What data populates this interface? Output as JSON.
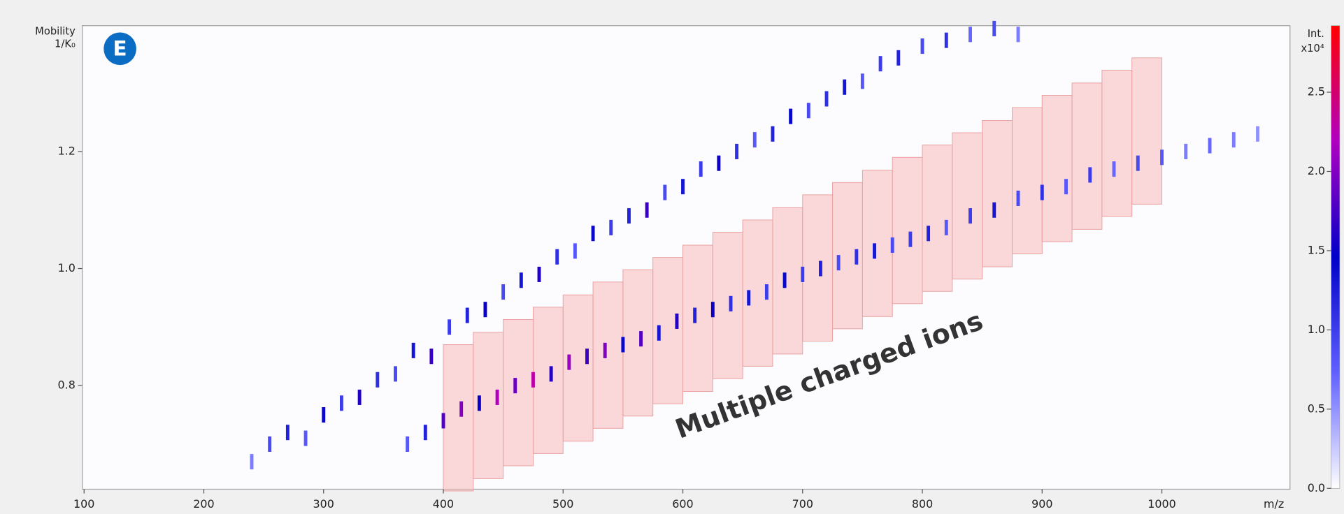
{
  "chart_data": {
    "type": "heatmap",
    "panel_label": "E",
    "y_label": "Mobility",
    "y_unit": "1/K₀",
    "x_label": "m/z",
    "colorbar_label": "Int.",
    "colorbar_unit": "x10⁴",
    "annotation": "Multiple charged ions",
    "xlim": [
      98.5,
      1107
    ],
    "xticks": [
      100,
      200,
      300,
      400,
      500,
      600,
      700,
      800,
      900,
      1000
    ],
    "ylim": [
      0.623,
      1.415
    ],
    "yticks": [
      0.8,
      {
        "value": 1.0,
        "label": "1.0"
      },
      1.2
    ],
    "clim": [
      0,
      2.92
    ],
    "cticks": [
      {
        "value": 0,
        "label": "0.0"
      },
      0.5,
      {
        "value": 1.0,
        "label": "1.0"
      },
      1.5,
      {
        "value": 2.0,
        "label": "2.0"
      },
      2.5
    ],
    "colormap": [
      "#ffffff",
      "#6060ff",
      "#0000c8",
      "#b000c0",
      "#ff0000"
    ],
    "window_color": "#f7b9b9",
    "windows": {
      "mz_start": [
        400,
        425,
        450,
        475,
        500,
        525,
        550,
        575,
        600,
        625,
        650,
        675,
        700,
        725,
        750,
        775,
        800,
        825,
        850,
        875,
        900,
        925,
        950,
        975
      ],
      "mz_end": [
        425,
        450,
        475,
        500,
        525,
        550,
        575,
        600,
        625,
        650,
        675,
        700,
        725,
        750,
        775,
        800,
        825,
        850,
        875,
        900,
        925,
        950,
        975,
        1000
      ],
      "mobility_low": [
        0.62,
        0.641,
        0.663,
        0.684,
        0.705,
        0.727,
        0.748,
        0.769,
        0.79,
        0.812,
        0.833,
        0.854,
        0.876,
        0.897,
        0.918,
        0.94,
        0.961,
        0.982,
        1.003,
        1.025,
        1.046,
        1.067,
        1.089,
        1.11
      ],
      "mobility_high": [
        0.87,
        0.891,
        0.913,
        0.934,
        0.955,
        0.977,
        0.998,
        1.019,
        1.04,
        1.062,
        1.083,
        1.104,
        1.126,
        1.147,
        1.168,
        1.19,
        1.211,
        1.232,
        1.253,
        1.275,
        1.296,
        1.317,
        1.339,
        1.36
      ]
    },
    "ions": {
      "mz": [
        240,
        255,
        270,
        285,
        300,
        315,
        330,
        345,
        360,
        375,
        390,
        405,
        420,
        435,
        450,
        465,
        480,
        495,
        510,
        525,
        540,
        555,
        570,
        585,
        600,
        615,
        630,
        645,
        660,
        675,
        690,
        705,
        720,
        735,
        750,
        765,
        780,
        800,
        820,
        840,
        860,
        880,
        370,
        385,
        400,
        415,
        430,
        445,
        460,
        475,
        490,
        505,
        520,
        535,
        550,
        565,
        580,
        595,
        610,
        625,
        640,
        655,
        670,
        685,
        700,
        715,
        730,
        745,
        760,
        775,
        790,
        805,
        820,
        840,
        860,
        880,
        900,
        920,
        940,
        960,
        980,
        1000,
        1020,
        1040,
        1060,
        1080
      ],
      "mobility": [
        0.67,
        0.7,
        0.72,
        0.71,
        0.75,
        0.77,
        0.78,
        0.81,
        0.82,
        0.86,
        0.85,
        0.9,
        0.92,
        0.93,
        0.96,
        0.98,
        0.99,
        1.02,
        1.03,
        1.06,
        1.07,
        1.09,
        1.1,
        1.13,
        1.14,
        1.17,
        1.18,
        1.2,
        1.22,
        1.23,
        1.26,
        1.27,
        1.29,
        1.31,
        1.32,
        1.35,
        1.36,
        1.38,
        1.39,
        1.4,
        1.41,
        1.4,
        0.7,
        0.72,
        0.74,
        0.76,
        0.77,
        0.78,
        0.8,
        0.81,
        0.82,
        0.84,
        0.85,
        0.86,
        0.87,
        0.88,
        0.89,
        0.91,
        0.92,
        0.93,
        0.94,
        0.95,
        0.96,
        0.98,
        0.99,
        1.0,
        1.01,
        1.02,
        1.03,
        1.04,
        1.05,
        1.06,
        1.07,
        1.09,
        1.1,
        1.12,
        1.13,
        1.14,
        1.16,
        1.17,
        1.18,
        1.19,
        1.2,
        1.21,
        1.22,
        1.23
      ],
      "intensity": [
        0.6,
        0.9,
        1.2,
        0.8,
        1.4,
        1.0,
        1.6,
        1.1,
        0.9,
        1.3,
        1.7,
        1.0,
        1.2,
        1.5,
        0.9,
        1.3,
        1.6,
        1.1,
        0.8,
        1.4,
        1.0,
        1.2,
        1.7,
        0.9,
        1.3,
        1.0,
        1.5,
        1.1,
        0.8,
        1.2,
        1.4,
        0.9,
        1.1,
        1.3,
        0.8,
        1.0,
        1.2,
        0.9,
        1.1,
        0.7,
        0.9,
        0.6,
        0.8,
        1.2,
        1.8,
        2.0,
        1.5,
        2.2,
        1.9,
        2.3,
        1.6,
        2.1,
        1.7,
        2.0,
        1.4,
        1.8,
        1.3,
        1.6,
        1.2,
        1.5,
        1.1,
        1.3,
        1.0,
        1.4,
        1.0,
        1.2,
        0.9,
        1.1,
        1.3,
        0.9,
        1.0,
        1.2,
        0.8,
        1.0,
        1.3,
        0.9,
        1.1,
        0.8,
        1.0,
        0.7,
        0.9,
        0.8,
        0.6,
        0.7,
        0.6,
        0.5
      ]
    }
  }
}
